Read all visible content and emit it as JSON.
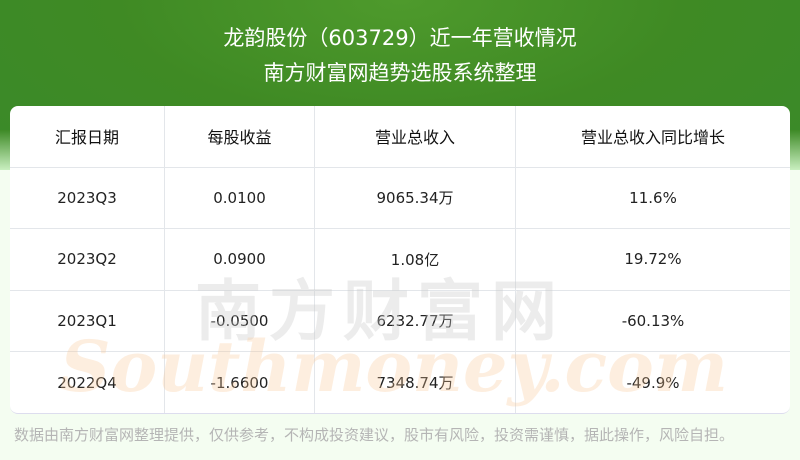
{
  "header": {
    "title": "龙韵股份（603729）近一年营收情况",
    "subtitle": "南方财富网趋势选股系统整理"
  },
  "table": {
    "columns": [
      "汇报日期",
      "每股收益",
      "营业总收入",
      "营业总收入同比增长"
    ],
    "rows": [
      [
        "2023Q3",
        "0.0100",
        "9065.34万",
        "11.6%"
      ],
      [
        "2023Q2",
        "0.0900",
        "1.08亿",
        "19.72%"
      ],
      [
        "2023Q1",
        "-0.0500",
        "6232.77万",
        "-60.13%"
      ],
      [
        "2022Q4",
        "-1.6600",
        "7348.74万",
        "-49.9%"
      ]
    ]
  },
  "watermark": {
    "cn": "南方财富网",
    "en": "southmoney.com"
  },
  "footer": {
    "disclaimer": "数据由南方财富网整理提供，仅供参考，不构成投资建议，股市有风险，投资需谨慎，据此操作，风险自担。"
  },
  "colors": {
    "banner": "#3f8a24",
    "background": "#f4fdf1"
  }
}
